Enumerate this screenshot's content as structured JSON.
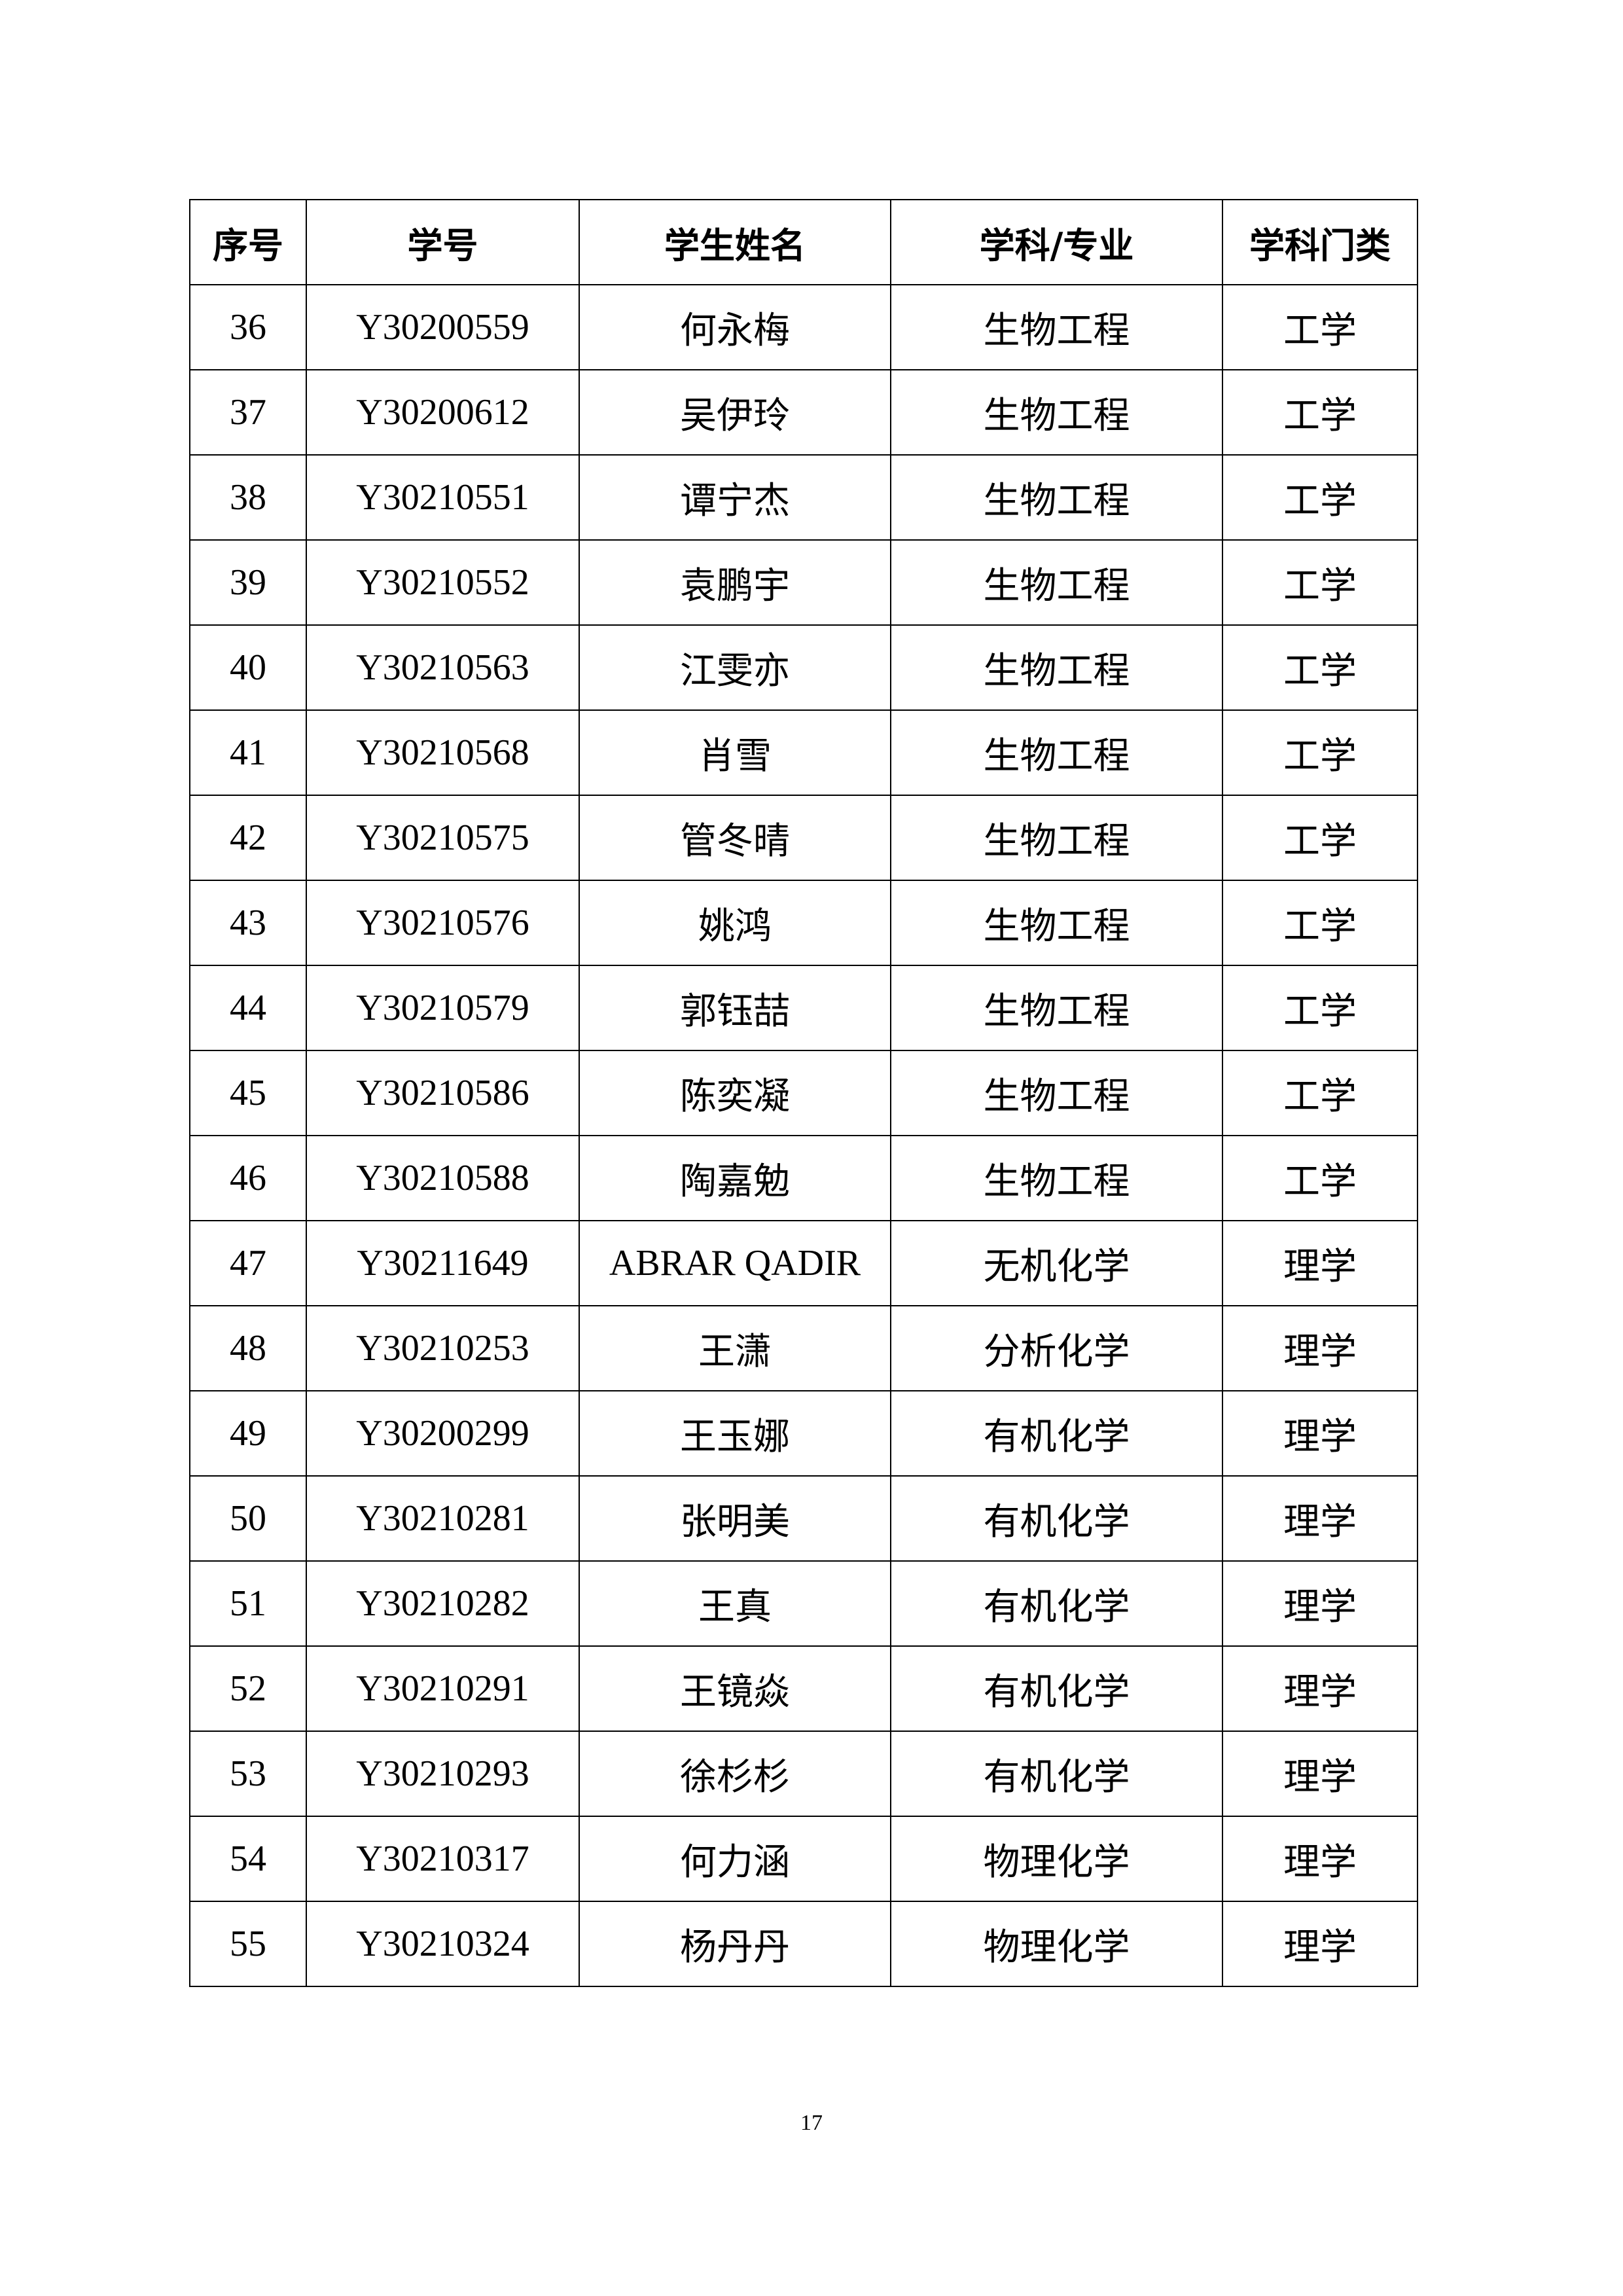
{
  "table": {
    "headers": [
      "序号",
      "学号",
      "学生姓名",
      "学科/专业",
      "学科门类"
    ],
    "rows": [
      [
        "36",
        "Y30200559",
        "何永梅",
        "生物工程",
        "工学"
      ],
      [
        "37",
        "Y30200612",
        "吴伊玲",
        "生物工程",
        "工学"
      ],
      [
        "38",
        "Y30210551",
        "谭宁杰",
        "生物工程",
        "工学"
      ],
      [
        "39",
        "Y30210552",
        "袁鹏宇",
        "生物工程",
        "工学"
      ],
      [
        "40",
        "Y30210563",
        "江雯亦",
        "生物工程",
        "工学"
      ],
      [
        "41",
        "Y30210568",
        "肖雪",
        "生物工程",
        "工学"
      ],
      [
        "42",
        "Y30210575",
        "管冬晴",
        "生物工程",
        "工学"
      ],
      [
        "43",
        "Y30210576",
        "姚鸿",
        "生物工程",
        "工学"
      ],
      [
        "44",
        "Y30210579",
        "郭钰喆",
        "生物工程",
        "工学"
      ],
      [
        "45",
        "Y30210586",
        "陈奕凝",
        "生物工程",
        "工学"
      ],
      [
        "46",
        "Y30210588",
        "陶嘉勉",
        "生物工程",
        "工学"
      ],
      [
        "47",
        "Y30211649",
        "ABRAR QADIR",
        "无机化学",
        "理学"
      ],
      [
        "48",
        "Y30210253",
        "王潇",
        "分析化学",
        "理学"
      ],
      [
        "49",
        "Y30200299",
        "王玉娜",
        "有机化学",
        "理学"
      ],
      [
        "50",
        "Y30210281",
        "张明美",
        "有机化学",
        "理学"
      ],
      [
        "51",
        "Y30210282",
        "王真",
        "有机化学",
        "理学"
      ],
      [
        "52",
        "Y30210291",
        "王镜焱",
        "有机化学",
        "理学"
      ],
      [
        "53",
        "Y30210293",
        "徐杉杉",
        "有机化学",
        "理学"
      ],
      [
        "54",
        "Y30210317",
        "何力涵",
        "物理化学",
        "理学"
      ],
      [
        "55",
        "Y30210324",
        "杨丹丹",
        "物理化学",
        "理学"
      ]
    ]
  },
  "page_number": "17"
}
